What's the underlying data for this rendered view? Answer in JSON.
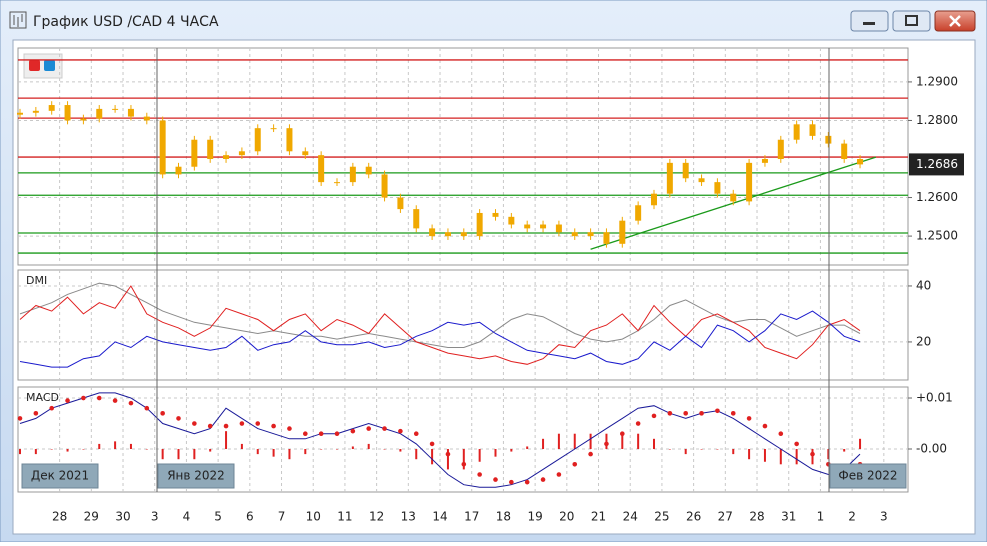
{
  "window": {
    "title": "График USD /CAD  4 ЧАСА"
  },
  "chart_data": [
    {
      "type": "candlestick",
      "categories": [
        null,
        null,
        "28",
        null,
        "29",
        null,
        "30",
        null,
        "3",
        null,
        "4",
        null,
        "5",
        null,
        "6",
        null,
        "7",
        null,
        "10",
        null,
        "11",
        null,
        "12",
        null,
        "13",
        null,
        "14",
        null,
        "17",
        null,
        "18",
        null,
        "19",
        null,
        "20",
        null,
        "21",
        null,
        "24",
        null,
        "25",
        null,
        "26",
        null,
        "27",
        null,
        "28",
        null,
        "31",
        null,
        "1",
        null,
        "2",
        null,
        "3",
        null
      ],
      "open": [
        1.2815,
        1.282,
        1.2825,
        1.284,
        1.28,
        1.2805,
        1.283,
        1.283,
        1.281,
        1.28,
        1.266,
        1.268,
        1.275,
        1.27,
        1.271,
        1.272,
        1.278,
        1.278,
        1.272,
        1.271,
        1.264,
        1.264,
        1.268,
        1.266,
        1.26,
        1.257,
        1.252,
        1.25,
        1.251,
        1.25,
        1.256,
        1.255,
        1.253,
        1.252,
        1.253,
        1.251,
        1.25,
        1.251,
        1.248,
        1.254,
        1.258,
        1.261,
        1.269,
        1.265,
        1.264,
        1.261,
        1.259,
        1.269,
        1.27,
        1.275,
        1.279,
        1.276,
        1.274,
        1.27,
        null,
        null
      ],
      "high": [
        1.283,
        1.2835,
        1.285,
        1.285,
        1.2815,
        1.284,
        1.284,
        1.284,
        1.282,
        1.281,
        1.269,
        1.276,
        1.276,
        1.272,
        1.273,
        1.279,
        1.279,
        1.279,
        1.273,
        1.272,
        1.265,
        1.269,
        1.269,
        1.267,
        1.261,
        1.258,
        1.253,
        1.252,
        1.252,
        1.257,
        1.257,
        1.256,
        1.254,
        1.254,
        1.254,
        1.252,
        1.252,
        1.252,
        1.255,
        1.259,
        1.262,
        1.27,
        1.27,
        1.266,
        1.265,
        1.262,
        1.27,
        1.271,
        1.276,
        1.28,
        1.28,
        1.277,
        1.275,
        1.271,
        null,
        null
      ],
      "low": [
        1.2805,
        1.281,
        1.2815,
        1.279,
        1.279,
        1.2795,
        1.282,
        1.28,
        1.279,
        1.265,
        1.265,
        1.267,
        1.269,
        1.269,
        1.27,
        1.271,
        1.277,
        1.271,
        1.27,
        1.263,
        1.263,
        1.263,
        1.265,
        1.259,
        1.256,
        1.251,
        1.249,
        1.249,
        1.249,
        1.249,
        1.254,
        1.252,
        1.251,
        1.251,
        1.25,
        1.249,
        1.249,
        1.247,
        1.247,
        1.253,
        1.257,
        1.26,
        1.264,
        1.263,
        1.26,
        1.258,
        1.258,
        1.268,
        1.269,
        1.274,
        1.275,
        1.273,
        1.269,
        1.2676,
        null,
        null
      ],
      "close": [
        1.282,
        1.2825,
        1.284,
        1.28,
        1.2805,
        1.283,
        1.283,
        1.281,
        1.28,
        1.266,
        1.268,
        1.275,
        1.27,
        1.271,
        1.272,
        1.278,
        1.278,
        1.272,
        1.271,
        1.264,
        1.264,
        1.268,
        1.266,
        1.26,
        1.257,
        1.252,
        1.25,
        1.251,
        1.25,
        1.256,
        1.255,
        1.253,
        1.252,
        1.253,
        1.251,
        1.25,
        1.251,
        1.248,
        1.254,
        1.258,
        1.261,
        1.269,
        1.265,
        1.264,
        1.261,
        1.259,
        1.269,
        1.27,
        1.275,
        1.279,
        1.276,
        1.274,
        1.27,
        1.2686,
        null,
        null
      ],
      "color": "#f0a800",
      "ylim": [
        1.2425,
        1.2988
      ],
      "yticks": [
        {
          "value": 1.25,
          "label": "1.2500"
        },
        {
          "value": 1.26,
          "label": "1.2600"
        },
        {
          "value": 1.28,
          "label": "1.2800"
        },
        {
          "value": 1.29,
          "label": "1.2900"
        }
      ],
      "grid": true,
      "levels": [
        {
          "value": 1.2957,
          "color": "#d42020"
        },
        {
          "value": 1.2858,
          "color": "#d42020"
        },
        {
          "value": 1.2806,
          "color": "#d42020"
        },
        {
          "value": 1.2705,
          "color": "#d42020"
        },
        {
          "value": 1.2664,
          "color": "#1a9a1a"
        },
        {
          "value": 1.2606,
          "color": "#1a9a1a"
        },
        {
          "value": 1.2508,
          "color": "#1a9a1a"
        },
        {
          "value": 1.2456,
          "color": "#1a9a1a"
        }
      ],
      "trendline": {
        "x": [
          36,
          54
        ],
        "values": [
          1.2466,
          1.2705
        ],
        "color": "#1a9a1a"
      }
    },
    {
      "type": "line",
      "title": "DMI",
      "series": [
        {
          "color": "#8a8a8a",
          "values": [
            30,
            32,
            34,
            37,
            39,
            41,
            40,
            37,
            34,
            31,
            29,
            27,
            26,
            25,
            24,
            23,
            24,
            23,
            22,
            22,
            21,
            22,
            23,
            22,
            21,
            20,
            19,
            18,
            18,
            20,
            24,
            28,
            30,
            29,
            26,
            23,
            21,
            20,
            21,
            24,
            28,
            33,
            35,
            32,
            29,
            27,
            28,
            28,
            25,
            22,
            24,
            26,
            26,
            23,
            null,
            null
          ]
        },
        {
          "color": "#e02020",
          "values": [
            28,
            33,
            31,
            36,
            30,
            34,
            32,
            40,
            30,
            27,
            25,
            22,
            25,
            32,
            30,
            28,
            24,
            28,
            30,
            24,
            28,
            26,
            23,
            30,
            25,
            20,
            18,
            16,
            15,
            14,
            15,
            13,
            12,
            14,
            19,
            18,
            24,
            26,
            30,
            24,
            33,
            27,
            22,
            28,
            30,
            27,
            24,
            18,
            16,
            14,
            19,
            26,
            28,
            24,
            null,
            null
          ]
        },
        {
          "color": "#1a1acc",
          "values": [
            13,
            12,
            11,
            11,
            14,
            15,
            20,
            18,
            22,
            20,
            19,
            18,
            17,
            18,
            22,
            17,
            19,
            20,
            24,
            20,
            19,
            19,
            20,
            18,
            19,
            22,
            24,
            27,
            26,
            27,
            23,
            20,
            17,
            16,
            15,
            14,
            16,
            13,
            12,
            14,
            20,
            17,
            22,
            18,
            26,
            24,
            20,
            24,
            30,
            28,
            31,
            27,
            22,
            20,
            null,
            null
          ]
        }
      ],
      "ylim": [
        6.4,
        45.7
      ],
      "yticks": [
        20,
        40
      ],
      "grid": true
    },
    {
      "type": "macd",
      "title": "MACD",
      "macd": {
        "color": "#1a1a99",
        "values": [
          0.005,
          0.006,
          0.008,
          0.009,
          0.01,
          0.011,
          0.011,
          0.01,
          0.008,
          0.005,
          0.004,
          0.003,
          0.004,
          0.008,
          0.006,
          0.004,
          0.003,
          0.002,
          0.002,
          0.003,
          0.003,
          0.004,
          0.005,
          0.004,
          0.003,
          0.001,
          -0.002,
          -0.005,
          -0.007,
          -0.0075,
          -0.0075,
          -0.007,
          -0.006,
          -0.004,
          -0.002,
          0.0,
          0.002,
          0.004,
          0.006,
          0.008,
          0.0085,
          0.007,
          0.006,
          0.007,
          0.0075,
          0.006,
          0.004,
          0.002,
          0.0,
          -0.002,
          -0.004,
          -0.005,
          -0.004,
          -0.001,
          null,
          null
        ]
      },
      "signal": {
        "color": "#e02020",
        "values": [
          0.006,
          0.007,
          0.008,
          0.0095,
          0.01,
          0.01,
          0.0095,
          0.009,
          0.008,
          0.007,
          0.006,
          0.005,
          0.0045,
          0.0045,
          0.005,
          0.005,
          0.0045,
          0.004,
          0.003,
          0.003,
          0.003,
          0.0035,
          0.004,
          0.004,
          0.0035,
          0.003,
          0.001,
          -0.001,
          -0.003,
          -0.005,
          -0.006,
          -0.0065,
          -0.0065,
          -0.006,
          -0.005,
          -0.003,
          -0.001,
          0.001,
          0.003,
          0.005,
          0.0065,
          0.007,
          0.007,
          0.007,
          0.0075,
          0.007,
          0.006,
          0.0045,
          0.003,
          0.001,
          -0.001,
          -0.003,
          -0.0035,
          -0.003,
          null,
          null
        ]
      },
      "histogram": {
        "color": "#e02020",
        "values": [
          -0.001,
          -0.001,
          0,
          -0.0005,
          0,
          0.001,
          0.0015,
          0.001,
          0,
          -0.002,
          -0.002,
          -0.002,
          -0.0005,
          0.0035,
          0.001,
          -0.001,
          -0.0015,
          -0.002,
          -0.001,
          0,
          0,
          0.0005,
          0.001,
          0,
          -0.0005,
          -0.002,
          -0.003,
          -0.004,
          -0.004,
          -0.0025,
          -0.0015,
          -0.0005,
          0.0005,
          0.002,
          0.003,
          0.003,
          0.003,
          0.003,
          0.003,
          0.003,
          0.002,
          0,
          -0.001,
          0,
          0,
          -0.001,
          -0.002,
          -0.0025,
          -0.003,
          -0.003,
          -0.003,
          -0.002,
          -0.0005,
          0.002,
          null,
          null
        ]
      },
      "ylim": [
        -0.00843,
        0.01216
      ],
      "yticks": [
        {
          "value": 0.01,
          "label": "+0.01"
        },
        {
          "value": 0,
          "label": "-0.00"
        }
      ],
      "grid": true,
      "annotations": [
        "Дек 2021",
        "Янв 2022",
        "Фев 2022"
      ]
    }
  ]
}
